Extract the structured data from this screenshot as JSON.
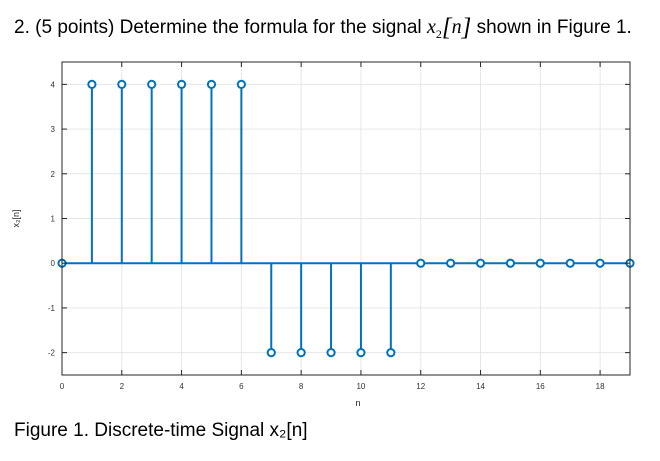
{
  "question": {
    "number": "2.",
    "points": "(5 points)",
    "text_before": "Determine the formula for the signal",
    "signal_name": "x",
    "signal_subscript": "2",
    "signal_index": "n",
    "text_after": "shown in Figure 1."
  },
  "caption": "Figure 1. Discrete-time Signal x₂[n]",
  "colors": {
    "stem": "#0072BD",
    "axes": "#262626",
    "grid": "#e6e6e6"
  },
  "chart_data": {
    "type": "stem",
    "xlabel": "n",
    "ylabel": "x₂[n]",
    "xlim": [
      0,
      19
    ],
    "ylim": [
      -2.5,
      4.5
    ],
    "xticks": [
      0,
      2,
      4,
      6,
      8,
      10,
      12,
      14,
      16,
      18
    ],
    "yticks": [
      -2,
      -1,
      0,
      1,
      2,
      3,
      4
    ],
    "grid": true,
    "x": [
      0,
      1,
      2,
      3,
      4,
      5,
      6,
      7,
      8,
      9,
      10,
      11,
      12,
      13,
      14,
      15,
      16,
      17,
      18,
      19
    ],
    "y": [
      0,
      4,
      4,
      4,
      4,
      4,
      4,
      -2,
      -2,
      -2,
      -2,
      -2,
      0,
      0,
      0,
      0,
      0,
      0,
      0,
      0
    ]
  }
}
